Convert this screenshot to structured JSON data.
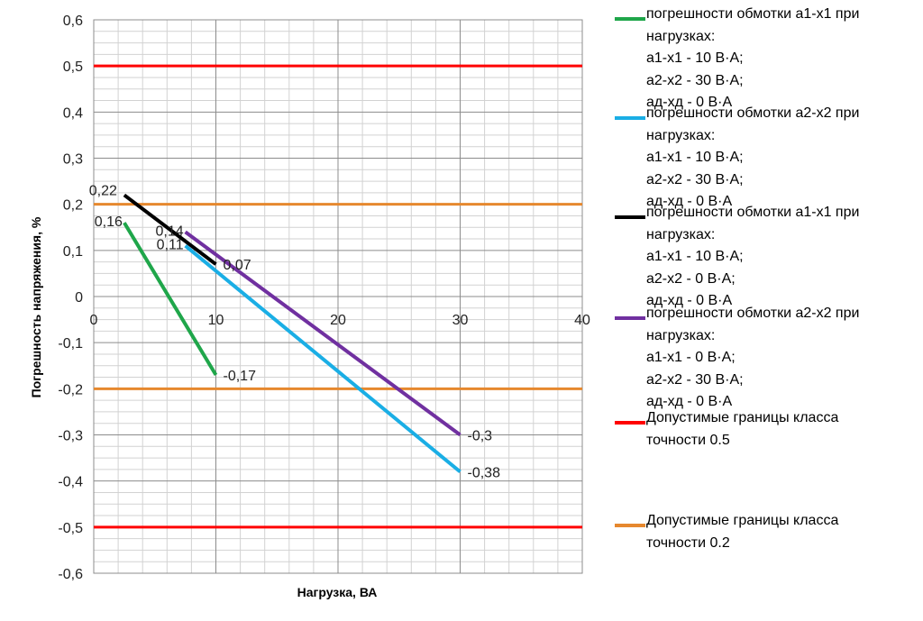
{
  "chart_data": {
    "type": "line",
    "title": "",
    "xlabel": "Нагрузка, ВА",
    "ylabel": "Погрешность напряжения, %",
    "xlim": [
      0,
      40
    ],
    "ylim": [
      -0.6,
      0.6
    ],
    "x_ticks": [
      "0",
      "10",
      "20",
      "30",
      "40"
    ],
    "y_ticks": [
      "0,6",
      "0,5",
      "0,4",
      "0,3",
      "0,2",
      "0,1",
      "0",
      "-0,1",
      "-0,2",
      "-0,3",
      "-0,4",
      "-0,5",
      "-0,6"
    ],
    "grid": true,
    "legend_position": "right",
    "series": [
      {
        "name": "погрешности обмотки а1-х1 при\nнагрузках:\nа1-х1 - 10 В·А;\nа2-х2 - 30 В·А;\nад-хд - 0 В·А",
        "color": "#1FA64A",
        "points": [
          [
            2.5,
            0.16
          ],
          [
            10,
            -0.17
          ]
        ],
        "labels": [
          "0,16",
          "-0,17"
        ]
      },
      {
        "name": "погрешности обмотки а2-х2 при\nнагрузках:\nа1-х1 - 10 В·А;\nа2-х2 - 30 В·А;\nад-хд - 0 В·А",
        "color": "#1AAEE5",
        "points": [
          [
            7.5,
            0.11
          ],
          [
            30,
            -0.38
          ]
        ],
        "labels": [
          "0,11",
          "-0,38"
        ]
      },
      {
        "name": "погрешности обмотки а1-х1 при\nнагрузках:\nа1-х1 - 10 В·А;\nа2-х2 -  0 В·А;\nад-хд - 0 В·А",
        "color": "#000000",
        "points": [
          [
            2.5,
            0.22
          ],
          [
            10,
            0.07
          ]
        ],
        "labels": [
          "0,22",
          "0,07"
        ]
      },
      {
        "name": "погрешности обмотки а2-х2 при\nнагрузках:\nа1-х1 -  0 В·А;\nа2-х2 -  30 В·А;\nад-хд - 0 В·А",
        "color": "#7030A0",
        "points": [
          [
            7.5,
            0.14
          ],
          [
            30,
            -0.3
          ]
        ],
        "labels": [
          "0,14",
          "-0,3"
        ]
      }
    ],
    "reference_lines": [
      {
        "name": "Допустимые границы класса\nточности 0.5",
        "color": "#FF0000",
        "values": [
          0.5,
          -0.5
        ]
      },
      {
        "name": "Допустимые границы класса\nточности 0.2",
        "color": "#E6882E",
        "values": [
          0.2,
          -0.2
        ]
      }
    ]
  }
}
